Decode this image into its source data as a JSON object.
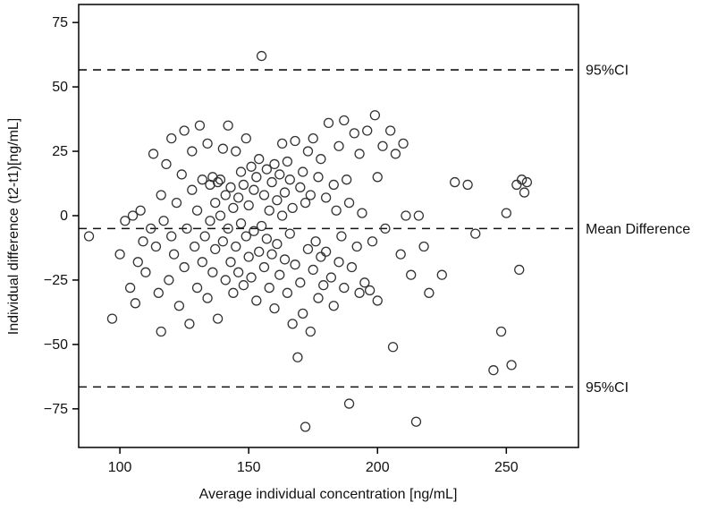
{
  "chart_data": {
    "type": "scatter",
    "title": "",
    "xlabel": "Average individual concentration [ng/mL]",
    "ylabel": "Individual difference (t2-t1)[ng/mL]",
    "xlim": [
      84,
      278
    ],
    "ylim": [
      -90,
      82
    ],
    "x_ticks": [
      100,
      150,
      200,
      250
    ],
    "y_ticks": [
      -75,
      -50,
      -25,
      0,
      25,
      50,
      75
    ],
    "grid": false,
    "legend_position": "none",
    "reference_lines": [
      {
        "name": "upper-ci",
        "value": 56.6,
        "label": "95%CI"
      },
      {
        "name": "mean-difference",
        "value": -5.0,
        "label": "Mean Difference"
      },
      {
        "name": "lower-ci",
        "value": -66.5,
        "label": "95%CI"
      }
    ],
    "points": [
      [
        88,
        -8
      ],
      [
        97,
        -40
      ],
      [
        100,
        -15
      ],
      [
        102,
        -2
      ],
      [
        104,
        -28
      ],
      [
        105,
        0
      ],
      [
        106,
        -34
      ],
      [
        107,
        -18
      ],
      [
        108,
        2
      ],
      [
        109,
        -10
      ],
      [
        110,
        -22
      ],
      [
        112,
        -5
      ],
      [
        113,
        24
      ],
      [
        114,
        -12
      ],
      [
        115,
        -30
      ],
      [
        116,
        8
      ],
      [
        116,
        -45
      ],
      [
        117,
        -2
      ],
      [
        118,
        20
      ],
      [
        119,
        -25
      ],
      [
        120,
        -8
      ],
      [
        120,
        30
      ],
      [
        121,
        -15
      ],
      [
        122,
        5
      ],
      [
        123,
        -35
      ],
      [
        124,
        16
      ],
      [
        125,
        -20
      ],
      [
        125,
        33
      ],
      [
        126,
        -5
      ],
      [
        127,
        -42
      ],
      [
        128,
        10
      ],
      [
        128,
        25
      ],
      [
        129,
        -12
      ],
      [
        130,
        -28
      ],
      [
        130,
        2
      ],
      [
        131,
        35
      ],
      [
        132,
        -18
      ],
      [
        132,
        14
      ],
      [
        133,
        -8
      ],
      [
        134,
        28
      ],
      [
        134,
        -32
      ],
      [
        135,
        12
      ],
      [
        135,
        -2
      ],
      [
        136,
        15
      ],
      [
        136,
        -22
      ],
      [
        137,
        5
      ],
      [
        137,
        -13
      ],
      [
        138,
        13
      ],
      [
        138,
        -40
      ],
      [
        139,
        0
      ],
      [
        139,
        14
      ],
      [
        140,
        -10
      ],
      [
        140,
        26
      ],
      [
        141,
        -25
      ],
      [
        141,
        8
      ],
      [
        142,
        -5
      ],
      [
        142,
        35
      ],
      [
        143,
        -18
      ],
      [
        143,
        11
      ],
      [
        144,
        -30
      ],
      [
        144,
        3
      ],
      [
        145,
        -12
      ],
      [
        145,
        25
      ],
      [
        146,
        -22
      ],
      [
        146,
        7
      ],
      [
        147,
        -3
      ],
      [
        147,
        17
      ],
      [
        148,
        -27
      ],
      [
        148,
        12
      ],
      [
        149,
        -8
      ],
      [
        149,
        30
      ],
      [
        150,
        -16
      ],
      [
        150,
        4
      ],
      [
        151,
        -24
      ],
      [
        151,
        19
      ],
      [
        152,
        -6
      ],
      [
        152,
        10
      ],
      [
        153,
        -33
      ],
      [
        153,
        15
      ],
      [
        154,
        -14
      ],
      [
        154,
        22
      ],
      [
        155,
        62
      ],
      [
        155,
        -4
      ],
      [
        156,
        8
      ],
      [
        156,
        -20
      ],
      [
        157,
        18
      ],
      [
        157,
        -9
      ],
      [
        158,
        2
      ],
      [
        158,
        -28
      ],
      [
        159,
        13
      ],
      [
        159,
        -15
      ],
      [
        160,
        20
      ],
      [
        160,
        -36
      ],
      [
        161,
        6
      ],
      [
        161,
        -11
      ],
      [
        162,
        16
      ],
      [
        162,
        -23
      ],
      [
        163,
        0
      ],
      [
        163,
        28
      ],
      [
        164,
        -17
      ],
      [
        164,
        9
      ],
      [
        165,
        -30
      ],
      [
        165,
        21
      ],
      [
        166,
        -7
      ],
      [
        166,
        14
      ],
      [
        167,
        -42
      ],
      [
        167,
        3
      ],
      [
        168,
        29
      ],
      [
        168,
        -19
      ],
      [
        169,
        -55
      ],
      [
        170,
        11
      ],
      [
        170,
        -26
      ],
      [
        171,
        17
      ],
      [
        171,
        -38
      ],
      [
        172,
        -82
      ],
      [
        172,
        5
      ],
      [
        173,
        -13
      ],
      [
        173,
        25
      ],
      [
        174,
        -45
      ],
      [
        174,
        8
      ],
      [
        175,
        -21
      ],
      [
        175,
        30
      ],
      [
        176,
        -10
      ],
      [
        177,
        15
      ],
      [
        177,
        -32
      ],
      [
        178,
        -16
      ],
      [
        178,
        22
      ],
      [
        179,
        -27
      ],
      [
        180,
        7
      ],
      [
        180,
        -14
      ],
      [
        181,
        36
      ],
      [
        182,
        -24
      ],
      [
        183,
        12
      ],
      [
        183,
        -35
      ],
      [
        184,
        2
      ],
      [
        185,
        -18
      ],
      [
        185,
        27
      ],
      [
        186,
        -8
      ],
      [
        187,
        37
      ],
      [
        187,
        -28
      ],
      [
        188,
        14
      ],
      [
        189,
        -73
      ],
      [
        189,
        5
      ],
      [
        190,
        -20
      ],
      [
        191,
        32
      ],
      [
        192,
        -12
      ],
      [
        193,
        24
      ],
      [
        193,
        -30
      ],
      [
        194,
        1
      ],
      [
        195,
        -26
      ],
      [
        196,
        33
      ],
      [
        197,
        -29
      ],
      [
        198,
        -10
      ],
      [
        199,
        39
      ],
      [
        200,
        15
      ],
      [
        200,
        -33
      ],
      [
        202,
        27
      ],
      [
        203,
        -5
      ],
      [
        205,
        33
      ],
      [
        206,
        -51
      ],
      [
        207,
        24
      ],
      [
        209,
        -15
      ],
      [
        210,
        28
      ],
      [
        211,
        0
      ],
      [
        213,
        -23
      ],
      [
        215,
        -80
      ],
      [
        216,
        0
      ],
      [
        218,
        -12
      ],
      [
        220,
        -30
      ],
      [
        225,
        -23
      ],
      [
        230,
        13
      ],
      [
        235,
        12
      ],
      [
        238,
        -7
      ],
      [
        245,
        -60
      ],
      [
        248,
        -45
      ],
      [
        250,
        1
      ],
      [
        252,
        -58
      ],
      [
        254,
        12
      ],
      [
        255,
        -21
      ],
      [
        256,
        14
      ],
      [
        257,
        9
      ],
      [
        258,
        13
      ]
    ]
  },
  "style": {
    "background_color": "#ffffff",
    "frame_color": "#000000",
    "point_stroke_color": "#333333",
    "dashed_line_color": "#111111",
    "text_color": "#111111"
  }
}
